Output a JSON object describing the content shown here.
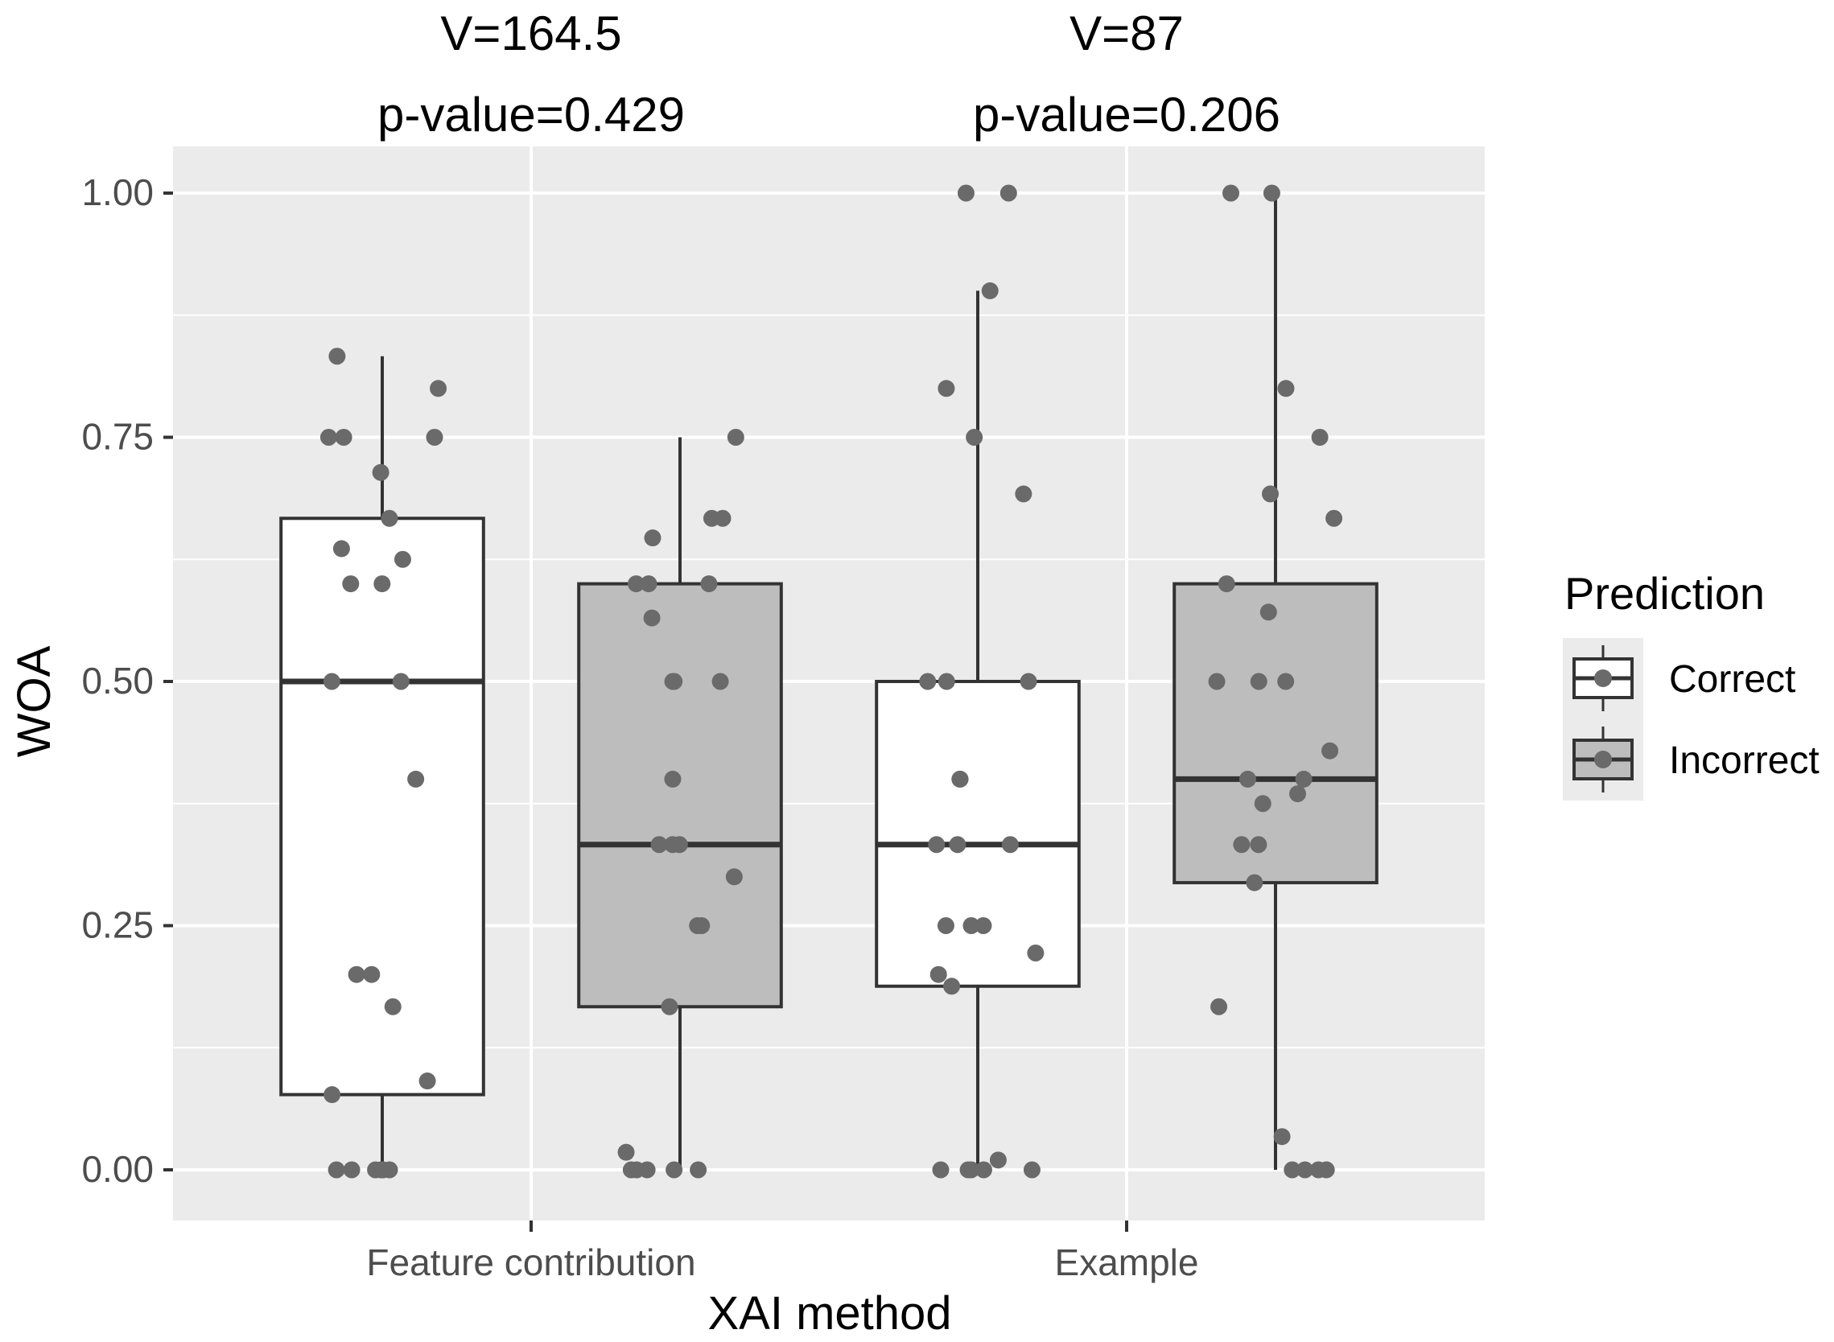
{
  "chart_data": {
    "type": "boxplot",
    "title": "",
    "xlabel": "XAI method",
    "ylabel": "WOA",
    "ylim": [
      -0.05,
      1.05
    ],
    "yticks": [
      0,
      0.25,
      0.5,
      0.75,
      1.0
    ],
    "ytick_labels": [
      "0.00",
      "0.25",
      "0.50",
      "0.75",
      "1.00"
    ],
    "categories": [
      "Feature contribution",
      "Example"
    ],
    "annotations": [
      {
        "category": "Feature contribution",
        "line1": "V=164.5",
        "line2": "p-value=0.429"
      },
      {
        "category": "Example",
        "line1": "V=87",
        "line2": "p-value=0.206"
      }
    ],
    "legend": {
      "title": "Prediction",
      "placement": "right",
      "entries": [
        "Correct",
        "Incorrect"
      ]
    },
    "colors": {
      "Correct": "#ffffff",
      "Incorrect": "#bdbdbd",
      "panel": "#ebebeb",
      "grid": "#ffffff",
      "points": "#6a6a6a",
      "box_line": "#333333"
    },
    "series": [
      {
        "name": "Correct",
        "boxes": [
          {
            "category": "Feature contribution",
            "lower_whisker": 0.0,
            "q1": 0.077,
            "median": 0.5,
            "q3": 0.667,
            "upper_whisker": 0.833
          },
          {
            "category": "Example",
            "lower_whisker": 0.0,
            "q1": 0.188,
            "median": 0.333,
            "q3": 0.5,
            "upper_whisker": 0.9
          }
        ],
        "points": [
          {
            "category": "Feature contribution",
            "values": [
              0,
              0,
              0,
              0,
              0,
              0,
              0.077,
              0.091,
              0.167,
              0.2,
              0.2,
              0.4,
              0.5,
              0.5,
              0.6,
              0.6,
              0.625,
              0.636,
              0.667,
              0.714,
              0.75,
              0.75,
              0.75,
              0.8,
              0.833
            ]
          },
          {
            "category": "Example",
            "values": [
              0,
              0,
              0,
              0,
              0,
              0.01,
              0.188,
              0.2,
              0.222,
              0.25,
              0.25,
              0.25,
              0.333,
              0.333,
              0.333,
              0.4,
              0.4,
              0.5,
              0.5,
              0.5,
              0.692,
              0.75,
              0.8,
              0.9,
              1.0,
              1.0
            ]
          }
        ]
      },
      {
        "name": "Incorrect",
        "boxes": [
          {
            "category": "Feature contribution",
            "lower_whisker": 0.0,
            "q1": 0.167,
            "median": 0.333,
            "q3": 0.6,
            "upper_whisker": 0.75
          },
          {
            "category": "Example",
            "lower_whisker": 0.0,
            "q1": 0.294,
            "median": 0.4,
            "q3": 0.6,
            "upper_whisker": 1.0
          }
        ],
        "points": [
          {
            "category": "Feature contribution",
            "values": [
              0,
              0,
              0,
              0,
              0,
              0.018,
              0.167,
              0.25,
              0.25,
              0.3,
              0.333,
              0.333,
              0.333,
              0.4,
              0.5,
              0.5,
              0.5,
              0.565,
              0.6,
              0.6,
              0.6,
              0.647,
              0.667,
              0.667,
              0.75
            ]
          },
          {
            "category": "Example",
            "values": [
              0,
              0,
              0,
              0,
              0.034,
              0.167,
              0.294,
              0.333,
              0.333,
              0.375,
              0.385,
              0.4,
              0.4,
              0.429,
              0.5,
              0.5,
              0.5,
              0.571,
              0.6,
              0.667,
              0.692,
              0.75,
              0.8,
              1.0,
              1.0
            ]
          }
        ]
      }
    ]
  }
}
